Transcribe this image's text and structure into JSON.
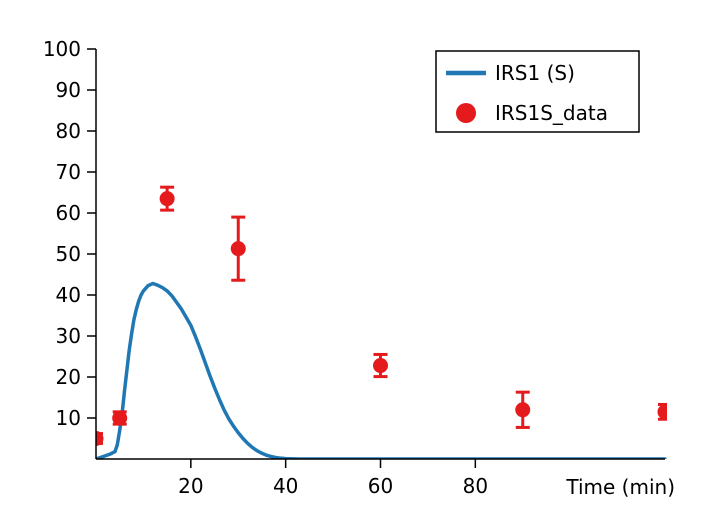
{
  "chart_data": {
    "type": "line",
    "xlabel": "Time (min)",
    "ylabel": "",
    "xlim": [
      0,
      120
    ],
    "ylim": [
      0,
      100
    ],
    "x_ticks": [
      20,
      40,
      60,
      80
    ],
    "y_ticks": [
      10,
      20,
      30,
      40,
      50,
      60,
      70,
      80,
      90,
      100
    ],
    "grid": false,
    "legend_position": "top-right",
    "series": [
      {
        "name": "IRS1 (S)",
        "kind": "line",
        "color": "#1f77b4",
        "x": [
          0,
          1,
          2,
          3,
          4,
          4.5,
          5,
          5.5,
          6,
          6.5,
          7,
          7.5,
          8,
          8.5,
          9,
          9.5,
          10,
          11,
          12,
          13,
          14,
          15,
          16,
          17,
          18,
          19,
          20,
          21,
          22,
          23,
          24,
          25,
          26,
          27,
          28,
          29,
          30,
          31,
          32,
          33,
          34,
          35,
          36,
          37,
          38,
          39,
          40,
          41,
          42,
          43,
          44,
          46,
          50,
          60,
          70,
          80,
          90,
          100,
          110,
          120
        ],
        "y": [
          0,
          0.4,
          0.8,
          1.2,
          1.8,
          3.5,
          7,
          11,
          16.5,
          21.5,
          26.5,
          30.5,
          34,
          36.5,
          38.5,
          40,
          41,
          42.3,
          42.8,
          42.4,
          41.8,
          41,
          39.8,
          38.2,
          36.6,
          34.6,
          32.6,
          29.8,
          26.8,
          23.6,
          20.4,
          17.4,
          14.6,
          12,
          9.8,
          8,
          6.4,
          5,
          3.8,
          2.8,
          2,
          1.4,
          0.9,
          0.6,
          0.35,
          0.2,
          0.1,
          0.05,
          0.02,
          0.01,
          0,
          0,
          0,
          0,
          0,
          0,
          0,
          0,
          0,
          0
        ]
      },
      {
        "name": "IRS1S_data",
        "kind": "errorbar",
        "color": "#e41a1c",
        "x": [
          0,
          5,
          15,
          30,
          60,
          90,
          120
        ],
        "y": [
          5,
          10,
          63.5,
          51.3,
          22.8,
          12,
          11.5
        ],
        "err": [
          1.2,
          1.5,
          2.8,
          7.7,
          2.7,
          4.3,
          1.8
        ]
      }
    ]
  }
}
